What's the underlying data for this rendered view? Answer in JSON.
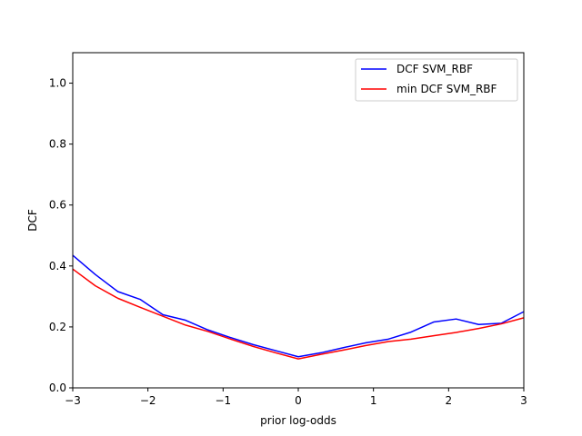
{
  "chart_data": {
    "type": "line",
    "xlabel": "prior log-odds",
    "ylabel": "DCF",
    "xlim": [
      -3,
      3
    ],
    "ylim": [
      0,
      1.1
    ],
    "xticks": [
      -3,
      -2,
      -1,
      0,
      1,
      2,
      3
    ],
    "xtick_labels": [
      "−3",
      "−2",
      "−1",
      "0",
      "1",
      "2",
      "3"
    ],
    "yticks": [
      0.0,
      0.2,
      0.4,
      0.6,
      0.8,
      1.0
    ],
    "ytick_labels": [
      "0.0",
      "0.2",
      "0.4",
      "0.6",
      "0.8",
      "1.0"
    ],
    "grid": false,
    "legend_position": "top-right",
    "series": [
      {
        "name": "DCF SVM_RBF",
        "color": "#0000ff",
        "x": [
          -3.0,
          -2.7,
          -2.4,
          -2.1,
          -1.8,
          -1.5,
          -1.2,
          -0.9,
          -0.6,
          -0.3,
          0.0,
          0.3,
          0.6,
          0.9,
          1.2,
          1.5,
          1.8,
          2.1,
          2.4,
          2.7,
          3.0
        ],
        "y": [
          0.435,
          0.372,
          0.316,
          0.29,
          0.24,
          0.222,
          0.19,
          0.165,
          0.142,
          0.122,
          0.102,
          0.115,
          0.132,
          0.148,
          0.16,
          0.183,
          0.216,
          0.226,
          0.208,
          0.212,
          0.25
        ]
      },
      {
        "name": "min DCF SVM_RBF",
        "color": "#ff0000",
        "x": [
          -3.0,
          -2.7,
          -2.4,
          -2.1,
          -1.8,
          -1.5,
          -1.2,
          -0.9,
          -0.6,
          -0.3,
          0.0,
          0.3,
          0.6,
          0.9,
          1.2,
          1.5,
          1.8,
          2.1,
          2.4,
          2.7,
          3.0
        ],
        "y": [
          0.39,
          0.335,
          0.294,
          0.264,
          0.235,
          0.206,
          0.185,
          0.16,
          0.136,
          0.115,
          0.095,
          0.11,
          0.124,
          0.139,
          0.152,
          0.16,
          0.171,
          0.182,
          0.195,
          0.21,
          0.23
        ]
      }
    ]
  }
}
